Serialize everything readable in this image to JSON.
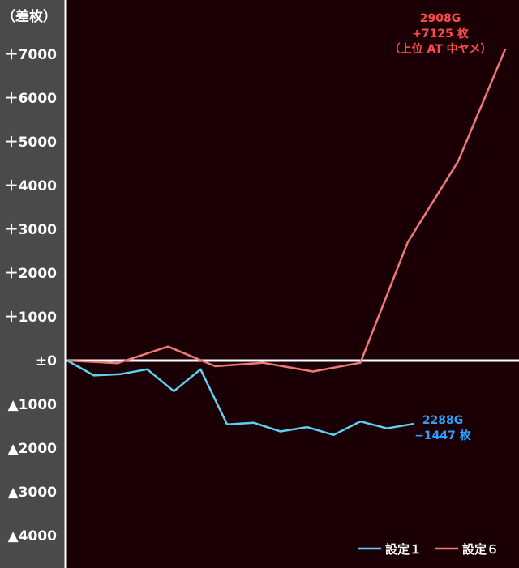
{
  "chart_data": {
    "type": "line",
    "ylabel": "（差枚）",
    "ylim": [
      -4500,
      7500
    ],
    "y_ticks": [
      {
        "value": 7000,
        "label": "＋7000"
      },
      {
        "value": 6000,
        "label": "＋6000"
      },
      {
        "value": 5000,
        "label": "＋5000"
      },
      {
        "value": 4000,
        "label": "＋4000"
      },
      {
        "value": 3000,
        "label": "＋3000"
      },
      {
        "value": 2000,
        "label": "＋2000"
      },
      {
        "value": 1000,
        "label": "＋1000"
      },
      {
        "value": 0,
        "label": "±0"
      },
      {
        "value": -1000,
        "label": "▲1000"
      },
      {
        "value": -2000,
        "label": "▲2000"
      },
      {
        "value": -3000,
        "label": "▲3000"
      },
      {
        "value": -4000,
        "label": "▲4000"
      }
    ],
    "grid": false,
    "legend_position": "bottom-right",
    "series": [
      {
        "name": "設定１",
        "color": "#5fd0f0",
        "points": [
          [
            0,
            0
          ],
          [
            0.09,
            -340
          ],
          [
            0.18,
            -310
          ],
          [
            0.27,
            -200
          ],
          [
            0.36,
            -700
          ],
          [
            0.45,
            -200
          ],
          [
            0.54,
            -1460
          ],
          [
            0.63,
            -1420
          ],
          [
            0.72,
            -1620
          ],
          [
            0.81,
            -1520
          ],
          [
            0.9,
            -1700
          ],
          [
            0.99,
            -1390
          ],
          [
            1.08,
            -1550
          ],
          [
            1.17,
            -1447
          ]
        ],
        "annotation": [
          "2288G",
          "−1447 枚"
        ]
      },
      {
        "name": "設定６",
        "color": "#f07878",
        "points": [
          [
            0,
            0
          ],
          [
            0.09,
            -30
          ],
          [
            0.17,
            -60
          ],
          [
            0.34,
            320
          ],
          [
            0.5,
            -130
          ],
          [
            0.66,
            -50
          ],
          [
            0.83,
            -250
          ],
          [
            0.99,
            -50
          ],
          [
            1.15,
            2700
          ],
          [
            1.32,
            4550
          ],
          [
            1.48,
            7125
          ]
        ],
        "annotation": [
          "2908G",
          "+7125 枚",
          "（上位 AT 中ヤメ）"
        ]
      }
    ]
  }
}
